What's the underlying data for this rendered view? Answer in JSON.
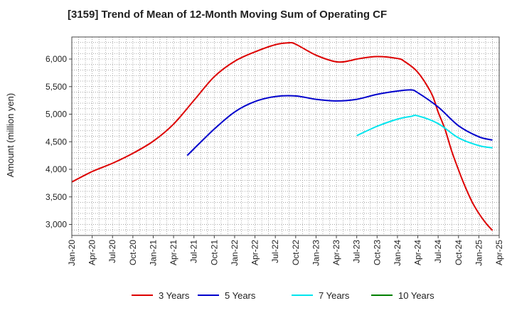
{
  "chart_data": {
    "type": "line",
    "title": "[3159]  Trend of Mean of 12-Month Moving Sum of Operating CF",
    "xlabel": "",
    "ylabel": "Amount (million yen)",
    "ylim": [
      2800,
      6400
    ],
    "yticks": [
      3000,
      3500,
      4000,
      4500,
      5000,
      5500,
      6000
    ],
    "ytick_labels": [
      "3,000",
      "3,500",
      "4,000",
      "4,500",
      "5,000",
      "5,500",
      "6,000"
    ],
    "xticks": [
      "Jan-20",
      "Apr-20",
      "Jul-20",
      "Oct-20",
      "Jan-21",
      "Apr-21",
      "Jul-21",
      "Oct-21",
      "Jan-22",
      "Apr-22",
      "Jul-22",
      "Oct-22",
      "Jan-23",
      "Apr-23",
      "Jul-23",
      "Oct-23",
      "Jan-24",
      "Apr-24",
      "Jul-24",
      "Oct-24",
      "Jan-25",
      "Apr-25"
    ],
    "grid": true,
    "legend_position": "bottom",
    "series": [
      {
        "name": "3 Years",
        "color": "#dd0000",
        "points": [
          [
            "Jan-20",
            3770
          ],
          [
            "Apr-20",
            3960
          ],
          [
            "Jul-20",
            4110
          ],
          [
            "Oct-20",
            4290
          ],
          [
            "Jan-21",
            4510
          ],
          [
            "Apr-21",
            4820
          ],
          [
            "Jul-21",
            5250
          ],
          [
            "Oct-21",
            5680
          ],
          [
            "Jan-22",
            5960
          ],
          [
            "Apr-22",
            6130
          ],
          [
            "Jul-22",
            6260
          ],
          [
            "Sep-22",
            6295
          ],
          [
            "Oct-22",
            6270
          ],
          [
            "Jan-23",
            6070
          ],
          [
            "Apr-23",
            5950
          ],
          [
            "Jun-23",
            5970
          ],
          [
            "Jul-23",
            6000
          ],
          [
            "Oct-23",
            6045
          ],
          [
            "Jan-24",
            6010
          ],
          [
            "Feb-24",
            5960
          ],
          [
            "Apr-24",
            5760
          ],
          [
            "Jun-24",
            5380
          ],
          [
            "Jul-24",
            5040
          ],
          [
            "Aug-24",
            4730
          ],
          [
            "Sep-24",
            4330
          ],
          [
            "Oct-24",
            3990
          ],
          [
            "Nov-24",
            3680
          ],
          [
            "Dec-24",
            3410
          ],
          [
            "Jan-25",
            3200
          ],
          [
            "Feb-25",
            3030
          ],
          [
            "Mar-25",
            2890
          ]
        ]
      },
      {
        "name": "5 Years",
        "color": "#0000cc",
        "points": [
          [
            "Jun-21",
            4250
          ],
          [
            "Oct-21",
            4730
          ],
          [
            "Jan-22",
            5040
          ],
          [
            "Apr-22",
            5230
          ],
          [
            "Jul-22",
            5320
          ],
          [
            "Oct-22",
            5330
          ],
          [
            "Jan-23",
            5270
          ],
          [
            "Apr-23",
            5240
          ],
          [
            "Jul-23",
            5270
          ],
          [
            "Oct-23",
            5360
          ],
          [
            "Jan-24",
            5420
          ],
          [
            "Mar-24",
            5440
          ],
          [
            "Apr-24",
            5390
          ],
          [
            "Jul-24",
            5130
          ],
          [
            "Oct-24",
            4790
          ],
          [
            "Jan-25",
            4590
          ],
          [
            "Mar-25",
            4530
          ]
        ]
      },
      {
        "name": "7 Years",
        "color": "#00e5ee",
        "points": [
          [
            "Jul-23",
            4610
          ],
          [
            "Oct-23",
            4780
          ],
          [
            "Jan-24",
            4910
          ],
          [
            "Mar-24",
            4960
          ],
          [
            "Apr-24",
            4970
          ],
          [
            "Jul-24",
            4830
          ],
          [
            "Oct-24",
            4570
          ],
          [
            "Jan-25",
            4430
          ],
          [
            "Mar-25",
            4390
          ]
        ]
      },
      {
        "name": "10 Years",
        "color": "#008000",
        "points": []
      }
    ]
  }
}
